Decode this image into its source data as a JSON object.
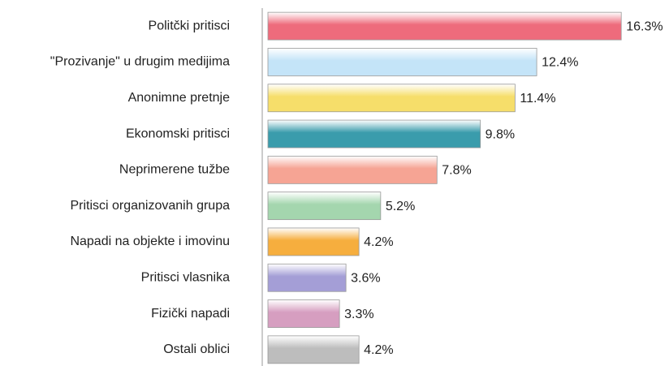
{
  "chart_data": {
    "type": "barh",
    "categories": [
      "Politčki pritisci",
      "\"Prozivanje\" u drugim medijima",
      "Anonimne pretnje",
      "Ekonomski pritisci",
      "Neprimerene tužbe",
      "Pritisci organizovanih grupa",
      "Napadi na objekte i imovinu",
      "Pritisci vlasnika",
      "Fizički napadi",
      "Ostali oblici"
    ],
    "values": [
      16.3,
      12.4,
      11.4,
      9.8,
      7.8,
      5.2,
      4.2,
      3.6,
      3.3,
      4.2
    ],
    "value_labels": [
      "16.3%",
      "12.4%",
      "11.4%",
      "9.8%",
      "7.8%",
      "5.2%",
      "4.2%",
      "3.6%",
      "3.3%",
      "4.2%"
    ],
    "colors": [
      "#ee6b7c",
      "#c4e4f8",
      "#f6de6a",
      "#3a9cac",
      "#f6a494",
      "#a4d6ae",
      "#f6ae3e",
      "#a49ed6",
      "#d69ec0",
      "#bdbdbd"
    ]
  }
}
